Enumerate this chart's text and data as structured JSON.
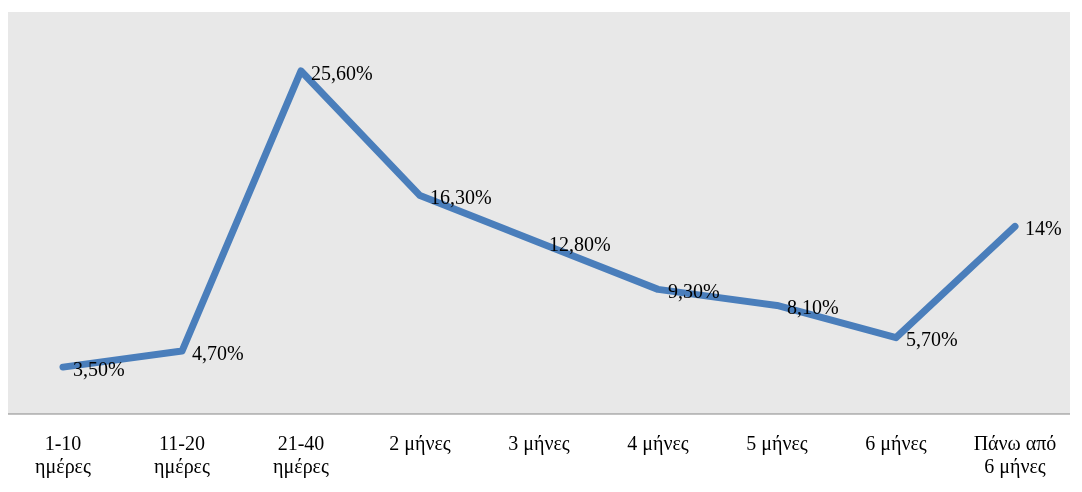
{
  "chart_data": {
    "type": "line",
    "categories": [
      "1-10 ημέρες",
      "11-20 ημέρες",
      "21-40 ημέρες",
      "2 μήνες",
      "3 μήνες",
      "4 μήνες",
      "5 μήνες",
      "6 μήνες",
      "Πάνω από 6 μήνες"
    ],
    "series": [
      {
        "color": "#4a7ebb",
        "values": [
          3.5,
          4.7,
          25.6,
          16.3,
          12.8,
          9.3,
          8.1,
          5.7,
          14
        ],
        "value_labels": [
          "3,50%",
          "4,70%",
          "25,60%",
          "16,30%",
          "12,80%",
          "9,30%",
          "8,10%",
          "5,70%",
          "14%"
        ]
      }
    ],
    "ylim": [
      0,
      30
    ],
    "marker": "none",
    "line_style": "solid"
  }
}
